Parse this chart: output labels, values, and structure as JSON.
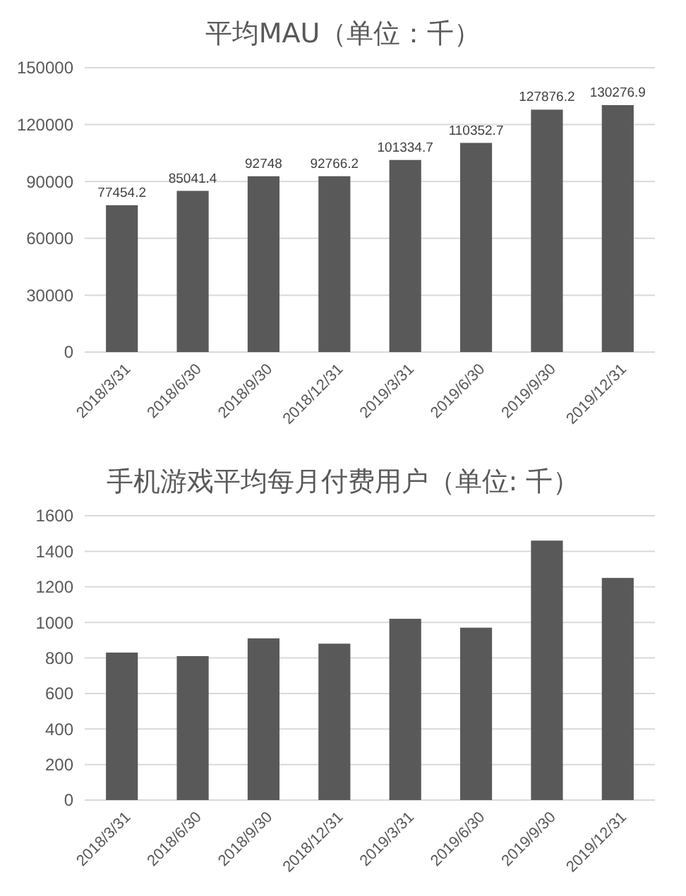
{
  "chart_data": [
    {
      "type": "bar",
      "title": "平均MAU（单位：千）",
      "categories": [
        "2018/3/31",
        "2018/6/30",
        "2018/9/30",
        "2018/12/31",
        "2019/3/31",
        "2019/6/30",
        "2019/9/30",
        "2019/12/31"
      ],
      "values": [
        77454.2,
        85041.4,
        92748,
        92766.2,
        101334.7,
        110352.7,
        127876.2,
        130276.9
      ],
      "color": "#595959",
      "ylim": [
        0,
        150000
      ],
      "yticks": [
        0,
        30000,
        60000,
        90000,
        120000,
        150000
      ],
      "grid": "y",
      "data_labels": true
    },
    {
      "type": "bar",
      "title": "手机游戏平均每月付费用户（单位:  千）",
      "categories": [
        "2018/3/31",
        "2018/6/30",
        "2018/9/30",
        "2018/12/31",
        "2019/3/31",
        "2019/6/30",
        "2019/9/30",
        "2019/12/31"
      ],
      "values": [
        830,
        810,
        910,
        880,
        1020,
        970,
        1460,
        1250
      ],
      "color": "#595959",
      "ylim": [
        0,
        1600
      ],
      "yticks": [
        0,
        200,
        400,
        600,
        800,
        1000,
        1200,
        1400,
        1600
      ],
      "grid": "y"
    }
  ]
}
